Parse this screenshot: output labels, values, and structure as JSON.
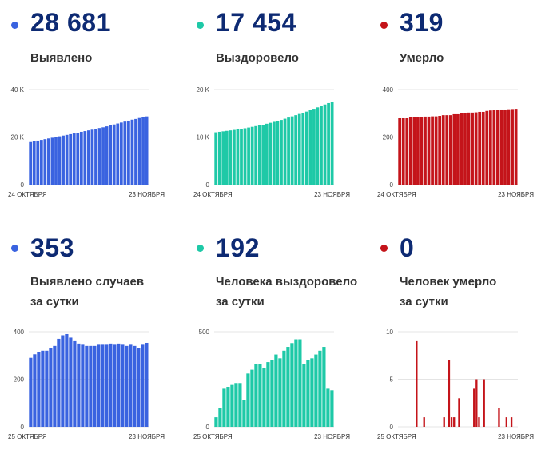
{
  "colors": {
    "blue": "#3a63e0",
    "teal": "#1ec9a7",
    "red": "#c4141a",
    "number": "#0d2a73",
    "axis": "#cccccc"
  },
  "panels": [
    {
      "number": "28 681",
      "label": [
        "Выявлено"
      ],
      "color": "#3a63e0"
    },
    {
      "number": "17 454",
      "label": [
        "Выздоровело"
      ],
      "color": "#1ec9a7"
    },
    {
      "number": "319",
      "label": [
        "Умерло"
      ],
      "color": "#c4141a"
    },
    {
      "number": "353",
      "label": [
        "Выявлено случаев",
        "за сутки"
      ],
      "color": "#3a63e0"
    },
    {
      "number": "192",
      "label": [
        "Человека выздоровело",
        "за сутки"
      ],
      "color": "#1ec9a7"
    },
    {
      "number": "0",
      "label": [
        "Человек умерло",
        "за сутки"
      ],
      "color": "#c4141a"
    }
  ],
  "chart_data": [
    {
      "type": "bar",
      "title": "",
      "color": "#3a63e0",
      "ylim": [
        0,
        40000
      ],
      "yticks": [
        0,
        20000,
        40000
      ],
      "ytick_labels": [
        "0",
        "20 K",
        "40 K"
      ],
      "x_start": "24 ОКТЯБРЯ",
      "x_end": "23 НОЯБРЯ",
      "values": [
        17900,
        18200,
        18500,
        18800,
        19100,
        19400,
        19700,
        20000,
        20300,
        20600,
        20900,
        21200,
        21500,
        21800,
        22200,
        22500,
        22800,
        23100,
        23500,
        23800,
        24100,
        24500,
        24900,
        25300,
        25700,
        26100,
        26500,
        26900,
        27300,
        27600,
        28000,
        28300,
        28681
      ]
    },
    {
      "type": "bar",
      "title": "",
      "color": "#1ec9a7",
      "ylim": [
        0,
        20000
      ],
      "yticks": [
        0,
        10000,
        20000
      ],
      "ytick_labels": [
        "0",
        "10 K",
        "20 K"
      ],
      "x_start": "24 ОКТЯБРЯ",
      "x_end": "23 НОЯБРЯ",
      "values": [
        11000,
        11100,
        11200,
        11300,
        11400,
        11500,
        11600,
        11700,
        11850,
        12000,
        12150,
        12300,
        12450,
        12600,
        12800,
        13000,
        13200,
        13400,
        13600,
        13850,
        14100,
        14350,
        14600,
        14850,
        15100,
        15350,
        15650,
        15950,
        16250,
        16550,
        16850,
        17150,
        17454
      ]
    },
    {
      "type": "bar",
      "title": "",
      "color": "#c4141a",
      "ylim": [
        0,
        400
      ],
      "yticks": [
        0,
        200,
        400
      ],
      "ytick_labels": [
        "0",
        "200",
        "400"
      ],
      "x_start": "24 ОКТЯБРЯ",
      "x_end": "23 НОЯБРЯ",
      "values": [
        279,
        279,
        279,
        284,
        284,
        285,
        285,
        286,
        286,
        287,
        287,
        289,
        292,
        292,
        292,
        296,
        296,
        301,
        301,
        303,
        303,
        304,
        306,
        306,
        310,
        312,
        314,
        314,
        316,
        316,
        317,
        318,
        319
      ]
    },
    {
      "type": "bar",
      "title": "",
      "color": "#3a63e0",
      "ylim": [
        0,
        400
      ],
      "yticks": [
        0,
        200,
        400
      ],
      "ytick_labels": [
        "0",
        "200",
        "400"
      ],
      "x_start": "25 ОКТЯБРЯ",
      "x_end": "23 НОЯБРЯ",
      "values": [
        290,
        305,
        315,
        320,
        320,
        330,
        340,
        370,
        385,
        390,
        375,
        360,
        350,
        345,
        340,
        340,
        340,
        345,
        345,
        345,
        350,
        345,
        350,
        345,
        340,
        345,
        340,
        330,
        345,
        353
      ]
    },
    {
      "type": "bar",
      "title": "",
      "color": "#1ec9a7",
      "ylim": [
        0,
        500
      ],
      "yticks": [
        0,
        500
      ],
      "ytick_labels": [
        "0",
        "500"
      ],
      "x_start": "25 ОКТЯБРЯ",
      "x_end": "23 НОЯБРЯ",
      "values": [
        50,
        100,
        200,
        210,
        220,
        230,
        230,
        140,
        280,
        300,
        330,
        330,
        310,
        340,
        350,
        380,
        360,
        400,
        420,
        440,
        460,
        460,
        330,
        350,
        360,
        380,
        400,
        420,
        200,
        192
      ]
    },
    {
      "type": "bar",
      "title": "",
      "color": "#c4141a",
      "ylim": [
        0,
        10
      ],
      "yticks": [
        0,
        5,
        10
      ],
      "ytick_labels": [
        "0",
        "5",
        "10"
      ],
      "x_start": "25 ОКТЯБРЯ",
      "x_end": "23 НОЯБРЯ",
      "values": [
        0,
        0,
        0,
        0,
        0,
        0,
        0,
        9,
        0,
        0,
        1,
        0,
        0,
        0,
        0,
        0,
        0,
        0,
        1,
        0,
        7,
        1,
        1,
        0,
        3,
        0,
        0,
        0,
        0,
        0,
        4,
        5,
        1,
        0,
        5,
        0,
        0,
        0,
        0,
        0,
        2,
        0,
        0,
        1,
        0,
        1,
        0,
        0
      ]
    }
  ]
}
